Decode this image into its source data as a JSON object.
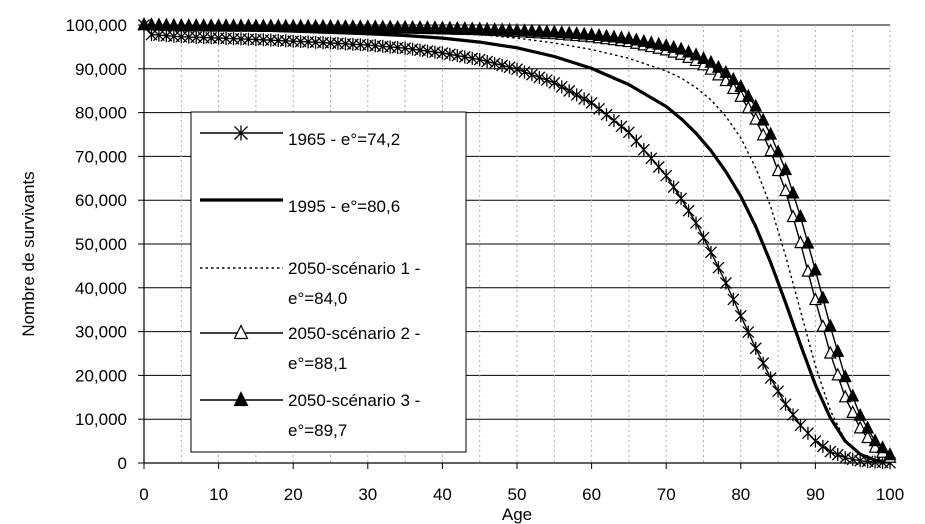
{
  "chart_data": {
    "type": "line",
    "title": "",
    "xlabel": "Age",
    "ylabel": "Nombre de survivants",
    "xlim": [
      0,
      100
    ],
    "ylim": [
      0,
      100000
    ],
    "grid": true,
    "legend_position": "left",
    "x_ticks": [
      "0",
      "10",
      "20",
      "30",
      "40",
      "50",
      "60",
      "70",
      "80",
      "90",
      "100"
    ],
    "y_ticks": [
      "0",
      "10,000",
      "20,000",
      "30,000",
      "40,000",
      "50,000",
      "60,000",
      "70,000",
      "80,000",
      "90,000",
      "100,000"
    ],
    "series": [
      {
        "name_lines": [
          "1965 - e°=74,2"
        ],
        "marker": "star",
        "line_style": "solid-thin",
        "x": [
          0,
          1,
          5,
          10,
          15,
          20,
          25,
          30,
          35,
          40,
          45,
          50,
          55,
          60,
          65,
          70,
          72,
          74,
          76,
          78,
          80,
          82,
          84,
          86,
          88,
          90,
          92,
          94,
          96,
          98,
          100
        ],
        "y": [
          100000,
          97800,
          97300,
          97000,
          96700,
          96300,
          95900,
          95400,
          94700,
          93600,
          92100,
          89900,
          86800,
          82200,
          75500,
          65600,
          60400,
          54800,
          48100,
          41100,
          33600,
          26200,
          19400,
          13400,
          8600,
          5000,
          2600,
          1200,
          500,
          200,
          50
        ]
      },
      {
        "name_lines": [
          "1995 - e°=80,6"
        ],
        "marker": "none",
        "line_style": "solid-thick",
        "x": [
          0,
          1,
          5,
          10,
          15,
          20,
          25,
          30,
          35,
          40,
          45,
          50,
          55,
          60,
          65,
          70,
          72,
          74,
          76,
          78,
          80,
          82,
          84,
          86,
          88,
          90,
          92,
          94,
          96,
          98,
          100
        ],
        "y": [
          100000,
          99300,
          99100,
          99000,
          98900,
          98600,
          98300,
          98000,
          97600,
          97000,
          96100,
          94800,
          92800,
          90100,
          86400,
          81400,
          78600,
          75300,
          71300,
          66500,
          60900,
          54000,
          45800,
          36600,
          27000,
          17800,
          10300,
          5000,
          2000,
          600,
          150
        ]
      },
      {
        "name_lines": [
          "2050-scénario 1 -",
          "e°=84,0"
        ],
        "marker": "none",
        "line_style": "dotted",
        "x": [
          0,
          5,
          10,
          15,
          20,
          25,
          30,
          35,
          40,
          45,
          50,
          55,
          60,
          65,
          70,
          72,
          74,
          76,
          78,
          80,
          82,
          84,
          86,
          88,
          90,
          92,
          94,
          96,
          98,
          100
        ],
        "y": [
          100000,
          99500,
          99400,
          99300,
          99200,
          99000,
          98800,
          98600,
          98300,
          97800,
          97000,
          95900,
          94400,
          92400,
          89500,
          87900,
          85700,
          82900,
          79100,
          74200,
          67400,
          58600,
          47300,
          34700,
          22200,
          12000,
          5200,
          1800,
          500,
          100
        ]
      },
      {
        "name_lines": [
          "2050-scénario 2 -",
          "e°=88,1"
        ],
        "marker": "triangle-open",
        "line_style": "solid-thin",
        "x": [
          0,
          5,
          10,
          15,
          20,
          25,
          30,
          35,
          40,
          45,
          50,
          55,
          60,
          65,
          70,
          72,
          74,
          76,
          78,
          80,
          82,
          84,
          86,
          88,
          90,
          92,
          94,
          96,
          98,
          100
        ],
        "y": [
          100000,
          99700,
          99650,
          99600,
          99500,
          99400,
          99300,
          99200,
          99000,
          98800,
          98400,
          97900,
          97200,
          96100,
          94200,
          93200,
          91800,
          89800,
          87200,
          83600,
          78400,
          71200,
          62100,
          50200,
          37200,
          25000,
          15000,
          7900,
          3500,
          1200
        ]
      },
      {
        "name_lines": [
          "2050-scénario 3 -",
          "e°=89,7"
        ],
        "marker": "triangle-filled",
        "line_style": "solid-thin",
        "x": [
          0,
          5,
          10,
          15,
          20,
          25,
          30,
          35,
          40,
          45,
          50,
          55,
          60,
          65,
          70,
          72,
          74,
          76,
          78,
          80,
          82,
          84,
          86,
          88,
          90,
          92,
          94,
          96,
          98,
          100
        ],
        "y": [
          100000,
          99800,
          99750,
          99700,
          99650,
          99600,
          99500,
          99400,
          99250,
          99000,
          98700,
          98300,
          97700,
          96800,
          95200,
          94400,
          93100,
          91400,
          89100,
          85900,
          81400,
          75000,
          66900,
          56200,
          44000,
          31200,
          19600,
          10800,
          5000,
          1800
        ]
      }
    ]
  }
}
